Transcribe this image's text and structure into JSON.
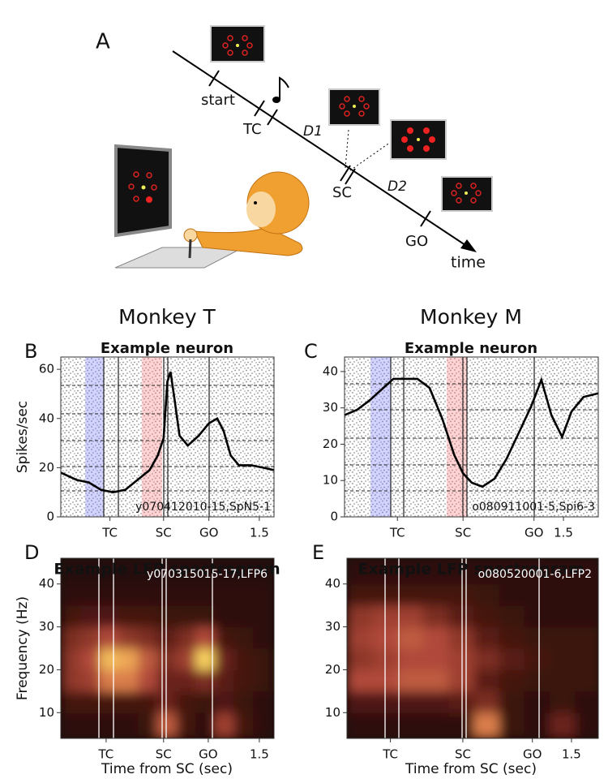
{
  "diagram": {
    "label": "A",
    "events": [
      "start",
      "TC",
      "SC",
      "GO"
    ],
    "delays": [
      "D1",
      "D2"
    ],
    "axis_label": "time"
  },
  "chart_data": [
    {
      "type": "line",
      "panel": "B",
      "group_title": "Monkey T",
      "title": "Example neuron",
      "ylabel": "Spikes/sec",
      "annotation": "y070412010-15,SpN5-1",
      "color": "#000000",
      "x": [
        -1.61,
        -1.36,
        -1.17,
        -0.98,
        -0.79,
        -0.6,
        -0.41,
        -0.22,
        -0.09,
        0,
        0.06,
        0.11,
        0.17,
        0.25,
        0.38,
        0.55,
        0.71,
        0.84,
        0.94,
        1.05,
        1.18,
        1.37,
        1.56,
        1.73
      ],
      "values": [
        18,
        15,
        14,
        11,
        10,
        11,
        15,
        19,
        25,
        32,
        55,
        59,
        48,
        33,
        29,
        33,
        38,
        40,
        35,
        25,
        21,
        21,
        20,
        19
      ],
      "xlim": [
        -1.61,
        1.73
      ],
      "ylim": [
        0,
        65
      ],
      "xticks": [
        {
          "value": -0.84,
          "label": "TC"
        },
        {
          "value": 0,
          "label": "SC"
        },
        {
          "value": 0.71,
          "label": "GO"
        },
        1.5
      ],
      "yticks": [
        0,
        20,
        40,
        60
      ]
    },
    {
      "type": "line",
      "panel": "C",
      "group_title": "Monkey M",
      "title": "Example neuron",
      "annotation": "o080911001-5,Spi6-3",
      "color": "#000000",
      "x": [
        -1.77,
        -1.58,
        -1.4,
        -1.22,
        -1.04,
        -0.86,
        -0.68,
        -0.5,
        -0.31,
        -0.13,
        0,
        0.13,
        0.29,
        0.47,
        0.65,
        0.83,
        1.02,
        1.17,
        1.32,
        1.48,
        1.62,
        1.8,
        2.02
      ],
      "values": [
        28,
        29.5,
        32,
        35,
        38,
        38,
        38,
        35.5,
        27,
        17,
        12,
        9.4,
        8.3,
        10.5,
        16,
        23,
        30.5,
        37.7,
        28,
        22,
        29,
        33,
        34
      ],
      "xlim": [
        -1.77,
        2.02
      ],
      "ylim": [
        0,
        44
      ],
      "xticks": [
        {
          "value": -0.98,
          "label": "TC"
        },
        {
          "value": 0,
          "label": "SC"
        },
        {
          "value": 1.06,
          "label": "GO"
        },
        1.5
      ],
      "yticks": [
        0,
        10,
        20,
        30,
        40
      ]
    },
    {
      "type": "heatmap",
      "panel": "D",
      "title": "Example LFP spectrogram",
      "ylabel": "Frequency (Hz)",
      "xlabel": "Time from SC (sec)",
      "annotation": "y070315015-17,LFP6",
      "x": [
        -1.6,
        -1.3,
        -1.0,
        -0.7,
        -0.4,
        -0.1,
        0.2,
        0.5,
        0.8,
        1.1,
        1.4,
        1.7
      ],
      "y": [
        4,
        10,
        15,
        20,
        25,
        30,
        35,
        40,
        46
      ],
      "z": [
        [
          0.1,
          0.1,
          0.1,
          0.1,
          0.15,
          0.6,
          0.2,
          0.1,
          0.5,
          0.2,
          0.1
        ],
        [
          0.2,
          0.2,
          0.2,
          0.2,
          0.2,
          0.35,
          0.2,
          0.15,
          0.25,
          0.15,
          0.1
        ],
        [
          0.45,
          0.5,
          0.7,
          0.7,
          0.55,
          0.35,
          0.35,
          0.4,
          0.3,
          0.2,
          0.15
        ],
        [
          0.45,
          0.55,
          0.85,
          0.8,
          0.6,
          0.4,
          0.5,
          0.9,
          0.35,
          0.2,
          0.15
        ],
        [
          0.4,
          0.45,
          0.55,
          0.45,
          0.4,
          0.3,
          0.4,
          0.55,
          0.2,
          0.15,
          0.1
        ],
        [
          0.2,
          0.25,
          0.25,
          0.2,
          0.2,
          0.15,
          0.15,
          0.15,
          0.1,
          0.1,
          0.1
        ],
        [
          0.1,
          0.1,
          0.1,
          0.1,
          0.1,
          0.1,
          0.1,
          0.1,
          0.1,
          0.1,
          0.1
        ],
        [
          0.05,
          0.05,
          0.05,
          0.05,
          0.05,
          0.05,
          0.05,
          0.05,
          0.05,
          0.05,
          0.05
        ]
      ],
      "xlim": [
        -1.61,
        1.73
      ],
      "ylim": [
        4,
        46
      ],
      "xticks": [
        {
          "value": -0.9,
          "label": "TC"
        },
        {
          "value": 0,
          "label": "SC"
        },
        {
          "value": 0.7,
          "label": "GO"
        },
        1.5
      ],
      "yticks": [
        10,
        20,
        30,
        40
      ]
    },
    {
      "type": "heatmap",
      "panel": "E",
      "title": "Example LFP spectrogram",
      "xlabel": "Time from SC (sec)",
      "annotation": "o080520001-6,LFP2",
      "x": [
        -1.6,
        -1.25,
        -0.9,
        -0.55,
        -0.2,
        0.15,
        0.5,
        0.85,
        1.2,
        1.55,
        1.9
      ],
      "y": [
        4,
        10,
        15,
        20,
        25,
        30,
        35,
        40,
        46
      ],
      "z": [
        [
          0.1,
          0.1,
          0.1,
          0.1,
          0.1,
          0.7,
          0.15,
          0.1,
          0.35,
          0.1
        ],
        [
          0.25,
          0.25,
          0.25,
          0.25,
          0.3,
          0.4,
          0.15,
          0.1,
          0.15,
          0.1
        ],
        [
          0.55,
          0.55,
          0.6,
          0.6,
          0.5,
          0.3,
          0.2,
          0.15,
          0.15,
          0.15
        ],
        [
          0.45,
          0.5,
          0.55,
          0.55,
          0.5,
          0.4,
          0.3,
          0.2,
          0.15,
          0.15
        ],
        [
          0.5,
          0.55,
          0.6,
          0.55,
          0.45,
          0.3,
          0.2,
          0.15,
          0.15,
          0.15
        ],
        [
          0.45,
          0.5,
          0.5,
          0.4,
          0.3,
          0.2,
          0.15,
          0.1,
          0.1,
          0.1
        ],
        [
          0.2,
          0.2,
          0.2,
          0.2,
          0.2,
          0.15,
          0.1,
          0.1,
          0.1,
          0.1
        ],
        [
          0.1,
          0.1,
          0.1,
          0.1,
          0.1,
          0.1,
          0.1,
          0.1,
          0.1,
          0.1
        ]
      ],
      "xlim": [
        -1.6,
        1.87
      ],
      "ylim": [
        4,
        46
      ],
      "xticks": [
        {
          "value": -1.0,
          "label": "TC"
        },
        {
          "value": 0,
          "label": "SC"
        },
        {
          "value": 0.96,
          "label": "GO"
        },
        1.5
      ],
      "yticks": [
        10,
        20,
        30,
        40
      ]
    }
  ]
}
